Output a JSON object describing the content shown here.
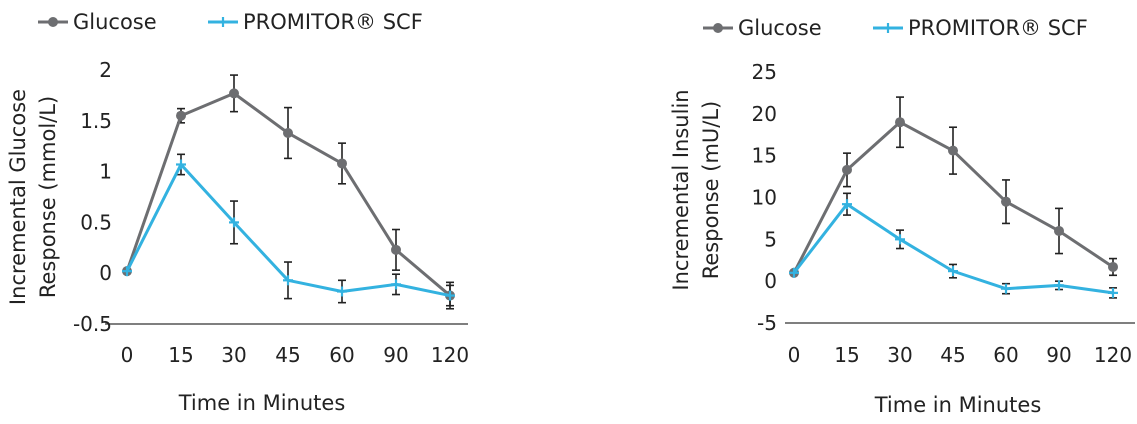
{
  "colors": {
    "glucose": "#6d6e71",
    "promitor": "#33b2e0",
    "axis": "#333333",
    "error_bar": "#222222"
  },
  "chart_data": [
    {
      "type": "line",
      "xlabel": "Time in Minutes",
      "ylabel_lines": [
        "Incremental Glucose",
        "Response (mmol/L)"
      ],
      "categories": [
        "0",
        "15",
        "30",
        "45",
        "60",
        "90",
        "120"
      ],
      "ylim": [
        -0.5,
        2
      ],
      "yticks": [
        -0.5,
        0,
        0.5,
        1,
        1.5,
        2
      ],
      "ytick_labels": [
        "-0.5",
        "0",
        "0.5",
        "1",
        "1.5",
        "2"
      ],
      "grid": false,
      "legend_position": "top",
      "series": [
        {
          "name": "Glucose",
          "marker": "circle",
          "values": [
            0.02,
            1.55,
            1.77,
            1.38,
            1.08,
            0.23,
            -0.22
          ],
          "errors": [
            0,
            0.07,
            0.18,
            0.25,
            0.2,
            0.2,
            0.13
          ]
        },
        {
          "name": "PROMITOR® SCF",
          "marker": "plus",
          "values": [
            0.02,
            1.07,
            0.5,
            -0.07,
            -0.18,
            -0.11,
            -0.22
          ],
          "errors": [
            0,
            0.1,
            0.21,
            0.18,
            0.11,
            0.1,
            0.1
          ]
        }
      ]
    },
    {
      "type": "line",
      "xlabel": "Time in Minutes",
      "ylabel_lines": [
        "Incremental Insulin",
        "Response (mU/L)"
      ],
      "categories": [
        "0",
        "15",
        "30",
        "45",
        "60",
        "90",
        "120"
      ],
      "ylim": [
        -5,
        25
      ],
      "yticks": [
        -5,
        0,
        5,
        10,
        15,
        20,
        25
      ],
      "ytick_labels": [
        "-5",
        "0",
        "5",
        "10",
        "15",
        "20",
        "25"
      ],
      "grid": false,
      "legend_position": "top",
      "series": [
        {
          "name": "Glucose",
          "marker": "circle",
          "values": [
            1.0,
            13.3,
            19.0,
            15.6,
            9.5,
            6.0,
            1.7
          ],
          "errors": [
            0,
            2.0,
            3.0,
            2.8,
            2.6,
            2.7,
            1.0
          ]
        },
        {
          "name": "PROMITOR® SCF",
          "marker": "plus",
          "values": [
            1.0,
            9.2,
            5.0,
            1.2,
            -0.9,
            -0.5,
            -1.4
          ],
          "errors": [
            0,
            1.3,
            1.1,
            0.8,
            0.6,
            0.5,
            0.6
          ]
        }
      ]
    }
  ]
}
